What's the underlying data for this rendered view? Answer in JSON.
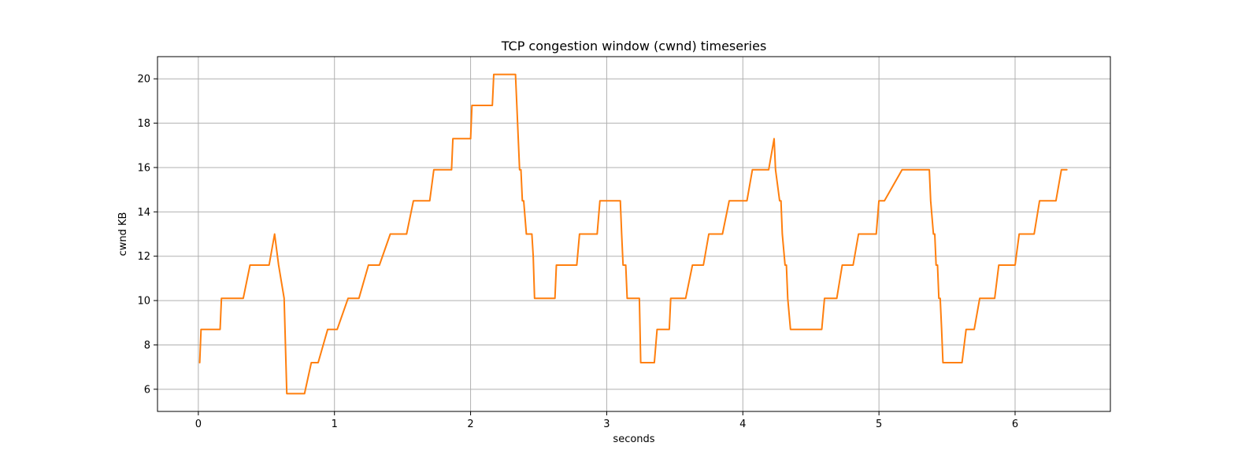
{
  "chart_data": {
    "type": "line",
    "title": "TCP congestion window (cwnd) timeseries",
    "xlabel": "seconds",
    "ylabel": "cwnd KB",
    "xlim": [
      -0.3,
      6.7
    ],
    "ylim": [
      5.0,
      21.0
    ],
    "xticks": [
      0,
      1,
      2,
      3,
      4,
      5,
      6
    ],
    "yticks": [
      6,
      8,
      10,
      12,
      14,
      16,
      18,
      20
    ],
    "grid": true,
    "series": [
      {
        "name": "",
        "color": "#ff7f0e",
        "x": [
          0.01,
          0.02,
          0.16,
          0.17,
          0.33,
          0.38,
          0.52,
          0.56,
          0.59,
          0.63,
          0.65,
          0.78,
          0.83,
          0.88,
          0.95,
          1.02,
          1.1,
          1.18,
          1.25,
          1.33,
          1.41,
          1.53,
          1.58,
          1.7,
          1.73,
          1.86,
          1.87,
          2.0,
          2.01,
          2.16,
          2.17,
          2.33,
          2.34,
          2.35,
          2.36,
          2.37,
          2.38,
          2.39,
          2.41,
          2.45,
          2.46,
          2.47,
          2.62,
          2.63,
          2.78,
          2.8,
          2.93,
          2.95,
          3.1,
          3.11,
          3.12,
          3.14,
          3.15,
          3.24,
          3.25,
          3.35,
          3.37,
          3.46,
          3.47,
          3.58,
          3.63,
          3.71,
          3.75,
          3.85,
          3.9,
          4.03,
          4.07,
          4.19,
          4.23,
          4.24,
          4.27,
          4.28,
          4.29,
          4.31,
          4.32,
          4.33,
          4.35,
          4.58,
          4.6,
          4.69,
          4.73,
          4.81,
          4.85,
          4.98,
          5.0,
          5.04,
          5.17,
          5.21,
          5.37,
          5.38,
          5.4,
          5.41,
          5.42,
          5.43,
          5.44,
          5.45,
          5.46,
          5.47,
          5.48,
          5.49,
          5.61,
          5.64,
          5.7,
          5.74,
          5.85,
          5.88,
          6.0,
          6.03,
          6.14,
          6.18,
          6.3,
          6.34,
          6.38
        ],
        "y": [
          7.2,
          8.7,
          8.7,
          10.1,
          10.1,
          11.6,
          11.6,
          13.0,
          11.6,
          10.1,
          5.8,
          5.8,
          7.2,
          7.2,
          8.7,
          8.7,
          10.1,
          10.1,
          11.6,
          11.6,
          13.0,
          13.0,
          14.5,
          14.5,
          15.9,
          15.9,
          17.3,
          17.3,
          18.8,
          18.8,
          20.2,
          20.2,
          18.8,
          17.3,
          15.9,
          15.9,
          14.5,
          14.5,
          13.0,
          13.0,
          12.0,
          10.1,
          10.1,
          11.6,
          11.6,
          13.0,
          13.0,
          14.5,
          14.5,
          13.0,
          11.6,
          11.6,
          10.1,
          10.1,
          7.2,
          7.2,
          8.7,
          8.7,
          10.1,
          10.1,
          11.6,
          11.6,
          13.0,
          13.0,
          14.5,
          14.5,
          15.9,
          15.9,
          17.3,
          15.9,
          14.5,
          14.5,
          13.0,
          11.6,
          11.6,
          10.1,
          8.7,
          8.7,
          10.1,
          10.1,
          11.6,
          11.6,
          13.0,
          13.0,
          14.5,
          14.5,
          15.9,
          15.9,
          15.9,
          14.5,
          13.0,
          13.0,
          11.6,
          11.6,
          10.1,
          10.1,
          8.7,
          7.2,
          7.2,
          7.2,
          7.2,
          8.7,
          8.7,
          10.1,
          10.1,
          11.6,
          11.6,
          13.0,
          13.0,
          14.5,
          14.5,
          15.9,
          15.9
        ]
      }
    ]
  }
}
